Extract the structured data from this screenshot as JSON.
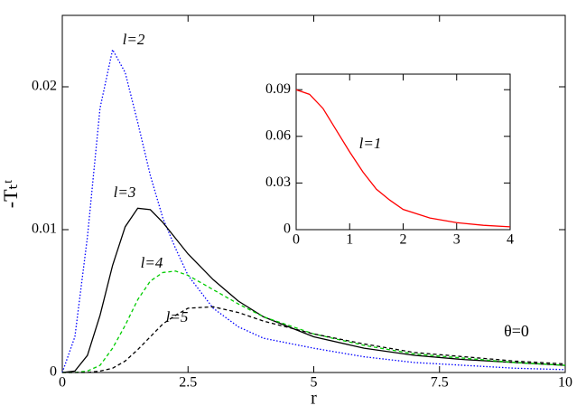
{
  "chart_data": [
    {
      "type": "line",
      "xlabel": "r",
      "ylabel": "-Tₜᵗ",
      "annotations": [
        "θ=0"
      ],
      "x": [
        0,
        0.25,
        0.5,
        0.75,
        1,
        1.25,
        1.5,
        1.75,
        2,
        2.25,
        2.5,
        3,
        3.5,
        4,
        5,
        6,
        7,
        8,
        9,
        10
      ],
      "xlim": [
        0,
        10
      ],
      "ylim": [
        0,
        0.025
      ],
      "xticks": [
        0,
        2.5,
        5,
        7.5,
        10
      ],
      "yticks": [
        0,
        0.01,
        0.02
      ],
      "series": [
        {
          "name": "l=2",
          "color": "#0000ff",
          "dash": "dotted",
          "values": [
            0,
            0.0025,
            0.0095,
            0.0185,
            0.0226,
            0.021,
            0.0175,
            0.0138,
            0.0108,
            0.0087,
            0.0068,
            0.0045,
            0.0032,
            0.0024,
            0.0017,
            0.0011,
            0.0007,
            0.0005,
            0.0003,
            0.0002
          ]
        },
        {
          "name": "l=3",
          "color": "#000000",
          "dash": "solid",
          "values": [
            0,
            0.0001,
            0.0012,
            0.004,
            0.0075,
            0.0102,
            0.0115,
            0.0114,
            0.0105,
            0.0094,
            0.0083,
            0.0065,
            0.005,
            0.0039,
            0.0025,
            0.0017,
            0.0012,
            0.0009,
            0.0007,
            0.0005
          ]
        },
        {
          "name": "l=4",
          "color": "#00cc00",
          "dash": "dashed",
          "values": [
            0,
            0,
            0.0001,
            0.0005,
            0.0017,
            0.0033,
            0.0051,
            0.0064,
            0.007,
            0.0071,
            0.0068,
            0.0058,
            0.0048,
            0.0039,
            0.0027,
            0.0019,
            0.0013,
            0.001,
            0.0007,
            0.0005
          ]
        },
        {
          "name": "l=5",
          "color": "#000000",
          "dash": "dashed",
          "values": [
            0,
            0,
            0,
            0.0001,
            0.0003,
            0.0008,
            0.0016,
            0.0025,
            0.0034,
            0.004,
            0.0045,
            0.0046,
            0.0042,
            0.0036,
            0.0027,
            0.002,
            0.0014,
            0.0011,
            0.0008,
            0.0006
          ]
        }
      ]
    },
    {
      "type": "line",
      "x": [
        0,
        0.25,
        0.5,
        0.75,
        1,
        1.25,
        1.5,
        1.75,
        2,
        2.5,
        3,
        3.5,
        4
      ],
      "xlim": [
        0,
        4
      ],
      "ylim": [
        0,
        0.1
      ],
      "xticks": [
        0,
        1,
        2,
        3,
        4
      ],
      "yticks": [
        0,
        0.03,
        0.06,
        0.09
      ],
      "series": [
        {
          "name": "l=1",
          "color": "#ff0000",
          "dash": "solid",
          "values": [
            0.09,
            0.087,
            0.078,
            0.064,
            0.05,
            0.037,
            0.026,
            0.019,
            0.013,
            0.0075,
            0.0045,
            0.0028,
            0.0018
          ]
        }
      ]
    }
  ]
}
